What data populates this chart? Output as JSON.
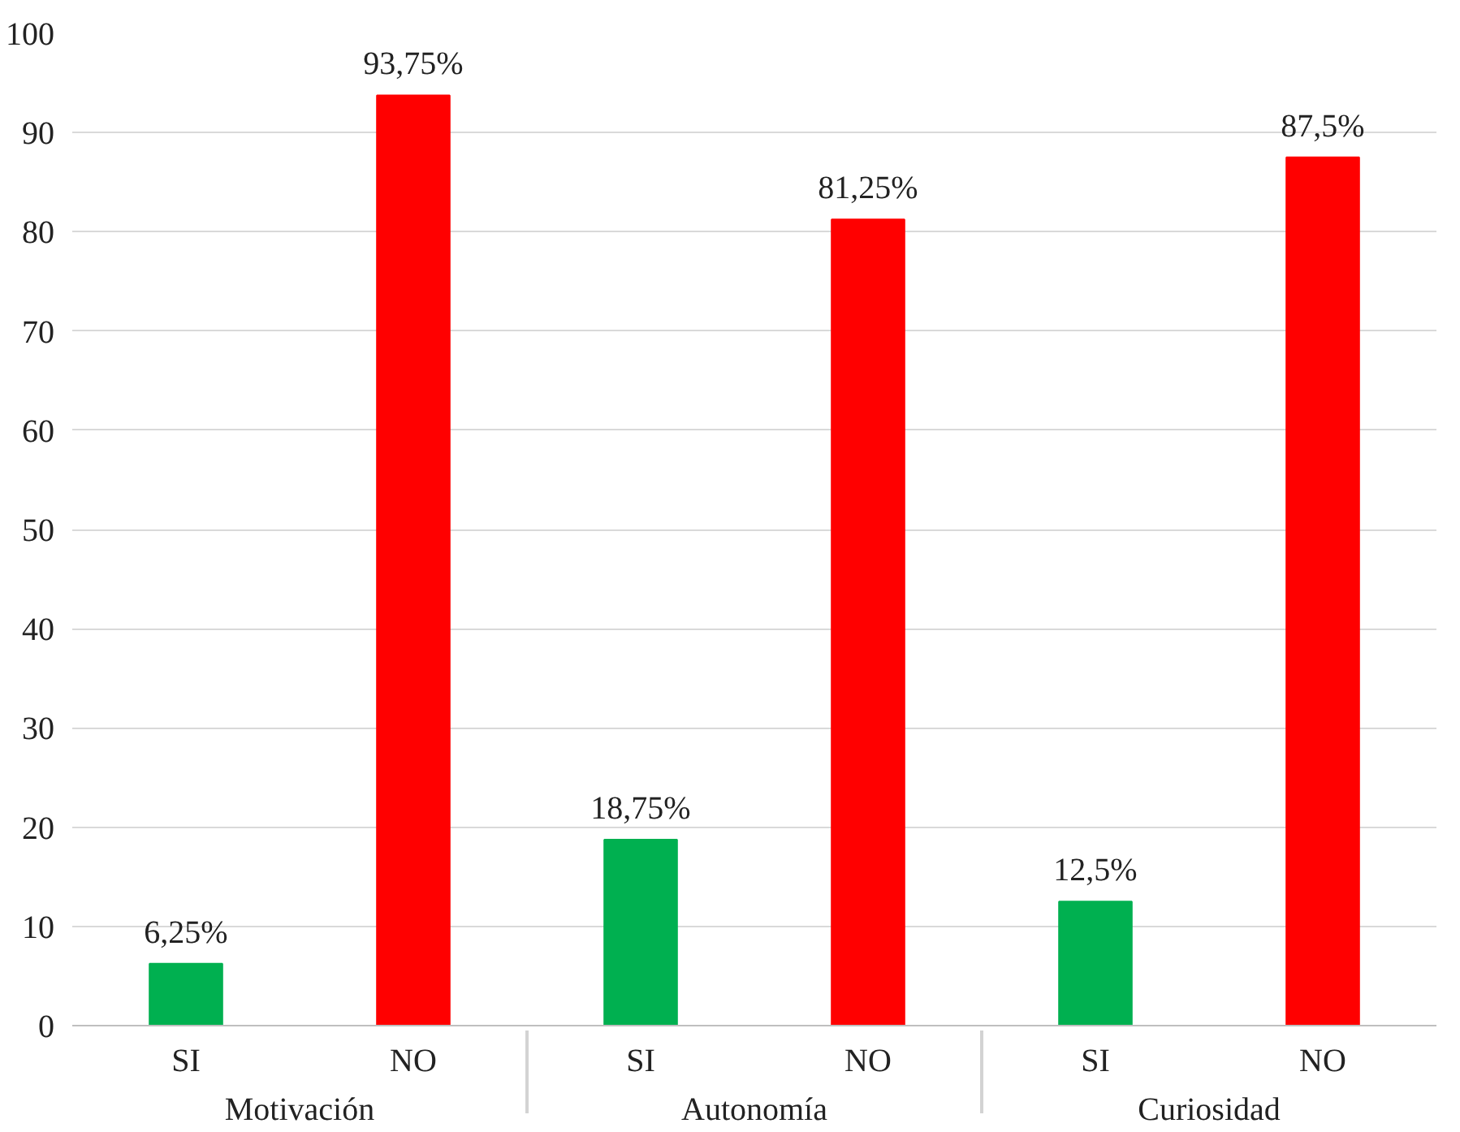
{
  "chart_data": {
    "type": "bar",
    "categories": [
      "Motivación",
      "Autonomía",
      "Curiosidad"
    ],
    "series": [
      {
        "name": "SI",
        "color": "#00b050",
        "values": [
          6.25,
          18.75,
          12.5
        ],
        "value_labels": [
          "6,25%",
          "18,75%",
          "12,5%"
        ]
      },
      {
        "name": "NO",
        "color": "#ff0000",
        "values": [
          93.75,
          81.25,
          87.5
        ],
        "value_labels": [
          "93,75%",
          "81,25%",
          "87,5%"
        ]
      }
    ],
    "ylim": [
      0,
      100
    ],
    "yticks": [
      0,
      10,
      20,
      30,
      40,
      50,
      60,
      70,
      80,
      90,
      100
    ],
    "grid": "y"
  }
}
